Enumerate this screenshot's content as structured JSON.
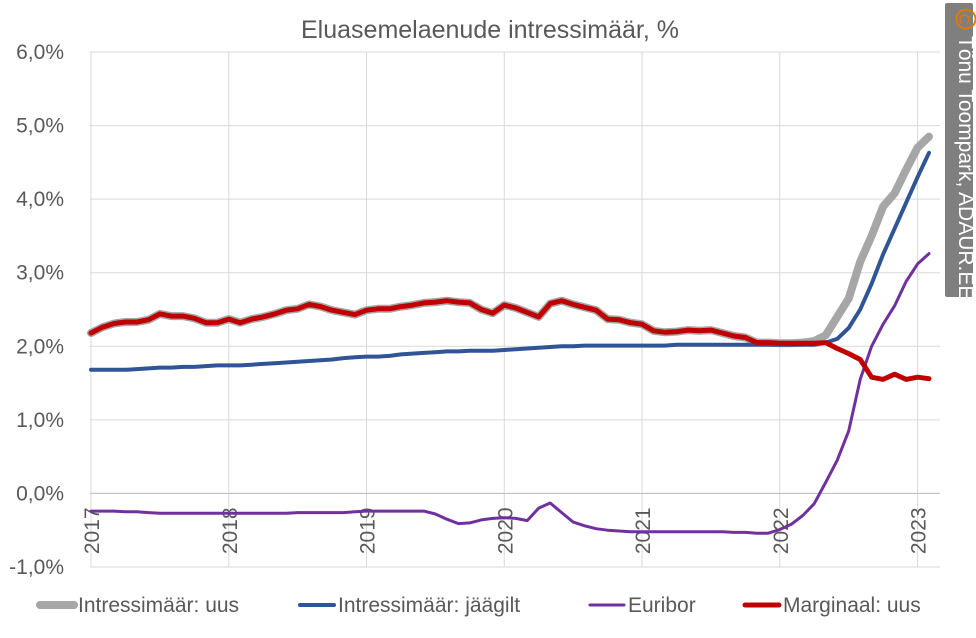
{
  "chart_data": {
    "type": "line",
    "title": "Eluasemelaenude intressimäär, %",
    "yticks": [
      "6,0%",
      "5,0%",
      "4,0%",
      "3,0%",
      "2,0%",
      "1,0%",
      "0,0%",
      "-1,0%"
    ],
    "ylim": [
      -1,
      6
    ],
    "xticks": [
      "2017",
      "2018",
      "2019",
      "2020",
      "2021",
      "2022",
      "2023"
    ],
    "x_start_year": 2017,
    "x_start_month": 1,
    "grid": true,
    "legend": "bottom",
    "series": [
      {
        "name": "Intressimäär: uus",
        "color": "#a6a6a6",
        "width": 8,
        "values": [
          2.18,
          2.26,
          2.31,
          2.33,
          2.33,
          2.36,
          2.44,
          2.41,
          2.41,
          2.38,
          2.32,
          2.32,
          2.37,
          2.32,
          2.37,
          2.4,
          2.44,
          2.49,
          2.51,
          2.57,
          2.54,
          2.49,
          2.46,
          2.43,
          2.49,
          2.51,
          2.51,
          2.54,
          2.56,
          2.59,
          2.6,
          2.62,
          2.6,
          2.59,
          2.5,
          2.45,
          2.56,
          2.52,
          2.46,
          2.4,
          2.58,
          2.62,
          2.57,
          2.53,
          2.49,
          2.37,
          2.36,
          2.32,
          2.3,
          2.21,
          2.19,
          2.2,
          2.22,
          2.21,
          2.22,
          2.18,
          2.14,
          2.12,
          2.05,
          2.05,
          2.04,
          2.04,
          2.05,
          2.07,
          2.15,
          2.4,
          2.65,
          3.15,
          3.5,
          3.9,
          4.08,
          4.4,
          4.7,
          4.85
        ]
      },
      {
        "name": "Intressimäär: jäägilt",
        "color": "#2f5597",
        "width": 4,
        "values": [
          1.68,
          1.68,
          1.68,
          1.68,
          1.69,
          1.7,
          1.71,
          1.71,
          1.72,
          1.72,
          1.73,
          1.74,
          1.74,
          1.74,
          1.75,
          1.76,
          1.77,
          1.78,
          1.79,
          1.8,
          1.81,
          1.82,
          1.84,
          1.85,
          1.86,
          1.86,
          1.87,
          1.89,
          1.9,
          1.91,
          1.92,
          1.93,
          1.93,
          1.94,
          1.94,
          1.94,
          1.95,
          1.96,
          1.97,
          1.98,
          1.99,
          2.0,
          2.0,
          2.01,
          2.01,
          2.01,
          2.01,
          2.01,
          2.01,
          2.01,
          2.01,
          2.02,
          2.02,
          2.02,
          2.02,
          2.02,
          2.02,
          2.02,
          2.02,
          2.02,
          2.02,
          2.02,
          2.02,
          2.02,
          2.05,
          2.1,
          2.25,
          2.5,
          2.85,
          3.25,
          3.6,
          3.95,
          4.3,
          4.63
        ]
      },
      {
        "name": "Euribor",
        "color": "#7030a0",
        "width": 3,
        "values": [
          -0.24,
          -0.24,
          -0.24,
          -0.25,
          -0.25,
          -0.26,
          -0.27,
          -0.27,
          -0.27,
          -0.27,
          -0.27,
          -0.27,
          -0.27,
          -0.27,
          -0.27,
          -0.27,
          -0.27,
          -0.27,
          -0.26,
          -0.26,
          -0.26,
          -0.26,
          -0.26,
          -0.25,
          -0.24,
          -0.24,
          -0.24,
          -0.24,
          -0.24,
          -0.24,
          -0.28,
          -0.35,
          -0.41,
          -0.4,
          -0.36,
          -0.34,
          -0.33,
          -0.34,
          -0.37,
          -0.2,
          -0.13,
          -0.26,
          -0.39,
          -0.44,
          -0.48,
          -0.5,
          -0.51,
          -0.52,
          -0.52,
          -0.52,
          -0.52,
          -0.52,
          -0.52,
          -0.52,
          -0.52,
          -0.52,
          -0.53,
          -0.53,
          -0.54,
          -0.54,
          -0.49,
          -0.42,
          -0.3,
          -0.14,
          0.15,
          0.45,
          0.85,
          1.55,
          2.0,
          2.3,
          2.55,
          2.88,
          3.12,
          3.26
        ]
      },
      {
        "name": "Marginaal: uus",
        "color": "#c00000",
        "width": 5,
        "values": [
          2.18,
          2.26,
          2.31,
          2.33,
          2.33,
          2.36,
          2.44,
          2.41,
          2.41,
          2.38,
          2.32,
          2.32,
          2.37,
          2.32,
          2.37,
          2.4,
          2.44,
          2.49,
          2.51,
          2.57,
          2.54,
          2.49,
          2.46,
          2.43,
          2.49,
          2.51,
          2.51,
          2.54,
          2.56,
          2.59,
          2.6,
          2.62,
          2.6,
          2.59,
          2.5,
          2.45,
          2.56,
          2.52,
          2.46,
          2.4,
          2.58,
          2.62,
          2.57,
          2.53,
          2.49,
          2.37,
          2.36,
          2.32,
          2.3,
          2.21,
          2.19,
          2.2,
          2.22,
          2.21,
          2.22,
          2.18,
          2.14,
          2.12,
          2.05,
          2.05,
          2.04,
          2.04,
          2.04,
          2.04,
          2.05,
          1.97,
          1.9,
          1.82,
          1.58,
          1.55,
          1.62,
          1.55,
          1.58,
          1.56
        ]
      }
    ]
  },
  "copyright": {
    "icon": "copyright-icon",
    "text": "Tõnu Toompark, ADAUR.EE"
  }
}
